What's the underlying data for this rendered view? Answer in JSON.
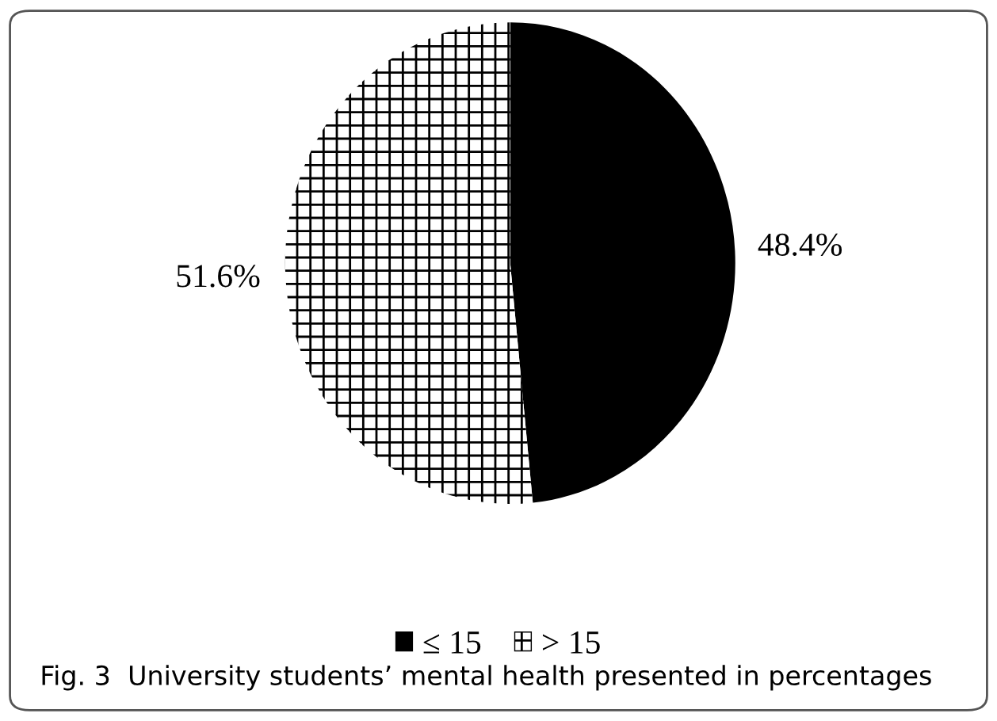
{
  "chart_data": {
    "type": "pie",
    "categories": [
      "≤ 15",
      "> 15"
    ],
    "values": [
      48.4,
      51.6
    ],
    "colors": [
      "#000000",
      "#ffffff"
    ],
    "value_labels": [
      "48.4%",
      "51.6%"
    ],
    "legend": "bottom",
    "annotations": [
      "Fig. 3  University students’ mental health presented in percentages"
    ]
  }
}
